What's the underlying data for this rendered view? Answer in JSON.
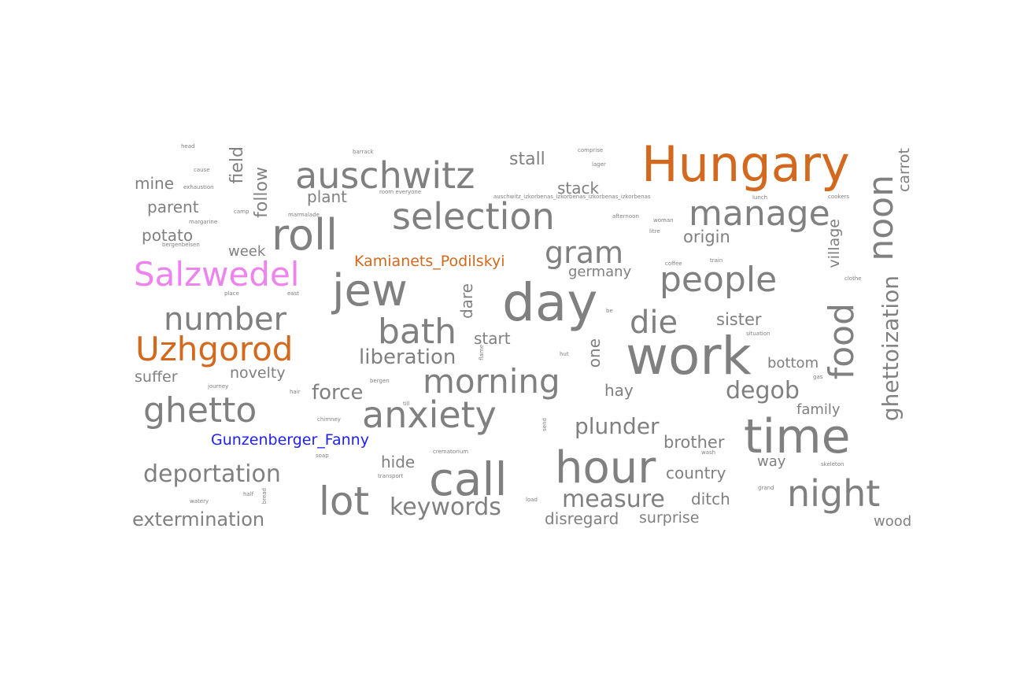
{
  "colors": {
    "default": "#808080",
    "place": "#d2691e",
    "pink": "#ee82ee",
    "person": "#1e1eff"
  },
  "words": [
    {
      "text": "Hungary",
      "color": "place"
    },
    {
      "text": "work"
    },
    {
      "text": "day"
    },
    {
      "text": "time"
    },
    {
      "text": "jew"
    },
    {
      "text": "hour"
    },
    {
      "text": "auschwitz"
    },
    {
      "text": "call"
    },
    {
      "text": "roll"
    },
    {
      "text": "selection"
    },
    {
      "text": "Uzhgorod",
      "color": "place"
    },
    {
      "text": "Salzwedel",
      "color": "pink"
    },
    {
      "text": "ghetto"
    },
    {
      "text": "anxiety"
    },
    {
      "text": "morning"
    },
    {
      "text": "manage"
    },
    {
      "text": "people"
    },
    {
      "text": "night"
    },
    {
      "text": "number"
    },
    {
      "text": "lot"
    },
    {
      "text": "bath"
    },
    {
      "text": "food"
    },
    {
      "text": "noon"
    },
    {
      "text": "die"
    },
    {
      "text": "gram"
    },
    {
      "text": "ghettoization"
    },
    {
      "text": "deportation"
    },
    {
      "text": "keywords"
    },
    {
      "text": "measure"
    },
    {
      "text": "plunder"
    },
    {
      "text": "degob"
    },
    {
      "text": "extermination"
    },
    {
      "text": "liberation"
    },
    {
      "text": "force"
    },
    {
      "text": "Kamianets_Podilskyi",
      "color": "place"
    },
    {
      "text": "Gunzenberger_Fanny",
      "color": "person"
    },
    {
      "text": "sister"
    },
    {
      "text": "start"
    },
    {
      "text": "brother"
    },
    {
      "text": "country"
    },
    {
      "text": "ditch"
    },
    {
      "text": "surprise"
    },
    {
      "text": "disregard"
    },
    {
      "text": "novelty"
    },
    {
      "text": "suffer"
    },
    {
      "text": "origin"
    },
    {
      "text": "stall"
    },
    {
      "text": "stack"
    },
    {
      "text": "plant"
    },
    {
      "text": "mine"
    },
    {
      "text": "parent"
    },
    {
      "text": "potato"
    },
    {
      "text": "week"
    },
    {
      "text": "germany"
    },
    {
      "text": "bottom"
    },
    {
      "text": "family"
    },
    {
      "text": "hide"
    },
    {
      "text": "hay"
    },
    {
      "text": "way"
    },
    {
      "text": "wood"
    },
    {
      "text": "field"
    },
    {
      "text": "follow"
    },
    {
      "text": "carrot"
    },
    {
      "text": "village"
    },
    {
      "text": "dare"
    },
    {
      "text": "one"
    },
    {
      "text": "head"
    },
    {
      "text": "cause"
    },
    {
      "text": "exhaustion"
    },
    {
      "text": "camp"
    },
    {
      "text": "margarine"
    },
    {
      "text": "bergenbelsen"
    },
    {
      "text": "barrack"
    },
    {
      "text": "room everyone"
    },
    {
      "text": "comprise"
    },
    {
      "text": "lager"
    },
    {
      "text": "auschwitz_izkorbenas_izkorbenas_izkorbenas_izkorbenas"
    },
    {
      "text": "marmalade"
    },
    {
      "text": "afternoon"
    },
    {
      "text": "woman"
    },
    {
      "text": "litre"
    },
    {
      "text": "lunch"
    },
    {
      "text": "cookers"
    },
    {
      "text": "coffee"
    },
    {
      "text": "train"
    },
    {
      "text": "place"
    },
    {
      "text": "east"
    },
    {
      "text": "clothe"
    },
    {
      "text": "situation"
    },
    {
      "text": "hut"
    },
    {
      "text": "gas"
    },
    {
      "text": "flame"
    },
    {
      "text": "journey"
    },
    {
      "text": "hair"
    },
    {
      "text": "bergen"
    },
    {
      "text": "till"
    },
    {
      "text": "chimney"
    },
    {
      "text": "send"
    },
    {
      "text": "soap"
    },
    {
      "text": "crematorium"
    },
    {
      "text": "wash"
    },
    {
      "text": "skeleton"
    },
    {
      "text": "transport"
    },
    {
      "text": "half"
    },
    {
      "text": "bread"
    },
    {
      "text": "load"
    },
    {
      "text": "grand"
    },
    {
      "text": "watery"
    },
    {
      "text": "be"
    }
  ]
}
